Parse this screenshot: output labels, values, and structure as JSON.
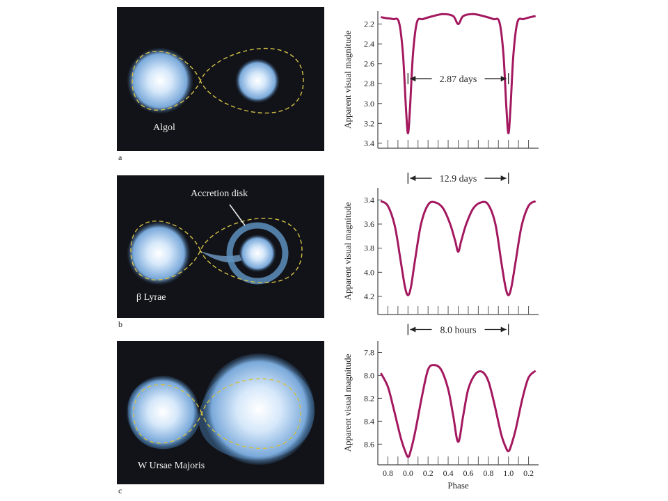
{
  "panels": [
    {
      "letter": "a",
      "star_label": "Algol"
    },
    {
      "letter": "b",
      "star_label": "β Lyrae",
      "disk_label": "Accretion disk"
    },
    {
      "letter": "c",
      "star_label": "W Ursae Majoris"
    }
  ],
  "colors": {
    "curve": "#a3185f",
    "orbit": "#d3c146",
    "star": "#9ec6ec"
  },
  "chart_data": [
    {
      "type": "line",
      "ylabel": "Apparent visual magnitude",
      "xlabel": "",
      "xlim": [
        -0.3,
        1.3
      ],
      "ylim": [
        2.07,
        3.45
      ],
      "yticks": [
        2.2,
        2.4,
        2.6,
        2.8,
        3.0,
        3.2,
        3.4
      ],
      "x_tick_positions": [
        -0.2,
        -0.1,
        0.0,
        0.1,
        0.2,
        0.3,
        0.4,
        0.5,
        0.6,
        0.7,
        0.8,
        0.9,
        1.0,
        1.1,
        1.2
      ],
      "series": [
        {
          "x": [
            -0.27,
            -0.22,
            -0.15,
            -0.09,
            -0.05,
            -0.02,
            0.0,
            0.02,
            0.05,
            0.09,
            0.15,
            0.25,
            0.35,
            0.45,
            0.5,
            0.55,
            0.65,
            0.75,
            0.85,
            0.91,
            0.95,
            0.98,
            1.0,
            1.02,
            1.05,
            1.09,
            1.15,
            1.22,
            1.27
          ],
          "y": [
            2.13,
            2.14,
            2.15,
            2.18,
            2.5,
            3.05,
            3.3,
            3.05,
            2.5,
            2.18,
            2.15,
            2.12,
            2.1,
            2.12,
            2.2,
            2.12,
            2.1,
            2.12,
            2.15,
            2.18,
            2.5,
            3.05,
            3.3,
            3.05,
            2.5,
            2.18,
            2.15,
            2.13,
            2.12
          ]
        }
      ],
      "period": {
        "label": "2.87 days",
        "from": 0.0,
        "to": 1.0,
        "y": 2.75
      }
    },
    {
      "type": "line",
      "ylabel": "Apparent visual magnitude",
      "xlabel": "",
      "xlim": [
        -0.3,
        1.3
      ],
      "ylim": [
        3.3,
        4.35
      ],
      "yticks": [
        3.4,
        3.6,
        3.8,
        4.0,
        4.2
      ],
      "x_tick_positions": [
        -0.2,
        -0.1,
        0.0,
        0.1,
        0.2,
        0.3,
        0.4,
        0.5,
        0.6,
        0.7,
        0.8,
        0.9,
        1.0,
        1.1,
        1.2
      ],
      "series": [
        {
          "x": [
            -0.27,
            -0.2,
            -0.13,
            -0.07,
            -0.03,
            0.0,
            0.03,
            0.07,
            0.13,
            0.2,
            0.27,
            0.35,
            0.42,
            0.47,
            0.5,
            0.53,
            0.58,
            0.65,
            0.73,
            0.8,
            0.87,
            0.93,
            0.97,
            1.0,
            1.03,
            1.07,
            1.13,
            1.2,
            1.27
          ],
          "y": [
            3.41,
            3.45,
            3.62,
            3.92,
            4.12,
            4.19,
            4.12,
            3.9,
            3.6,
            3.44,
            3.42,
            3.47,
            3.6,
            3.74,
            3.83,
            3.74,
            3.6,
            3.47,
            3.42,
            3.44,
            3.6,
            3.92,
            4.12,
            4.19,
            4.12,
            3.92,
            3.62,
            3.45,
            3.41
          ]
        }
      ],
      "period": {
        "label": "12.9 days",
        "from": 0.0,
        "to": 1.0,
        "y": 3.22
      }
    },
    {
      "type": "line",
      "ylabel": "Apparent visual magnitude",
      "xlabel": "Phase",
      "xlim": [
        -0.3,
        1.3
      ],
      "ylim": [
        7.7,
        8.78
      ],
      "yticks": [
        7.8,
        8.0,
        8.2,
        8.4,
        8.6
      ],
      "x_tick_positions": [
        -0.2,
        -0.1,
        0.0,
        0.1,
        0.2,
        0.3,
        0.4,
        0.5,
        0.6,
        0.7,
        0.8,
        0.9,
        1.0,
        1.1,
        1.2
      ],
      "xtick_labels": [
        {
          "x": -0.2,
          "label": "0.8"
        },
        {
          "x": 0.0,
          "label": "0.0"
        },
        {
          "x": 0.2,
          "label": "0.2"
        },
        {
          "x": 0.4,
          "label": "0.4"
        },
        {
          "x": 0.6,
          "label": "0.6"
        },
        {
          "x": 0.8,
          "label": "0.8"
        },
        {
          "x": 1.0,
          "label": "1.0"
        },
        {
          "x": 1.2,
          "label": "0.2"
        }
      ],
      "series": [
        {
          "x": [
            -0.27,
            -0.2,
            -0.14,
            -0.07,
            -0.02,
            0.0,
            0.02,
            0.07,
            0.14,
            0.2,
            0.26,
            0.33,
            0.4,
            0.45,
            0.5,
            0.55,
            0.6,
            0.67,
            0.74,
            0.8,
            0.86,
            0.93,
            0.98,
            1.0,
            1.02,
            1.07,
            1.14,
            1.2,
            1.27
          ],
          "y": [
            7.98,
            8.1,
            8.3,
            8.55,
            8.68,
            8.71,
            8.68,
            8.5,
            8.18,
            7.95,
            7.91,
            7.95,
            8.12,
            8.35,
            8.58,
            8.35,
            8.12,
            7.99,
            7.97,
            8.05,
            8.25,
            8.52,
            8.64,
            8.66,
            8.63,
            8.48,
            8.2,
            8.02,
            7.96
          ]
        }
      ],
      "period": {
        "label": "8.0 hours",
        "from": 0.0,
        "to": 1.0,
        "y": 7.6
      }
    }
  ]
}
